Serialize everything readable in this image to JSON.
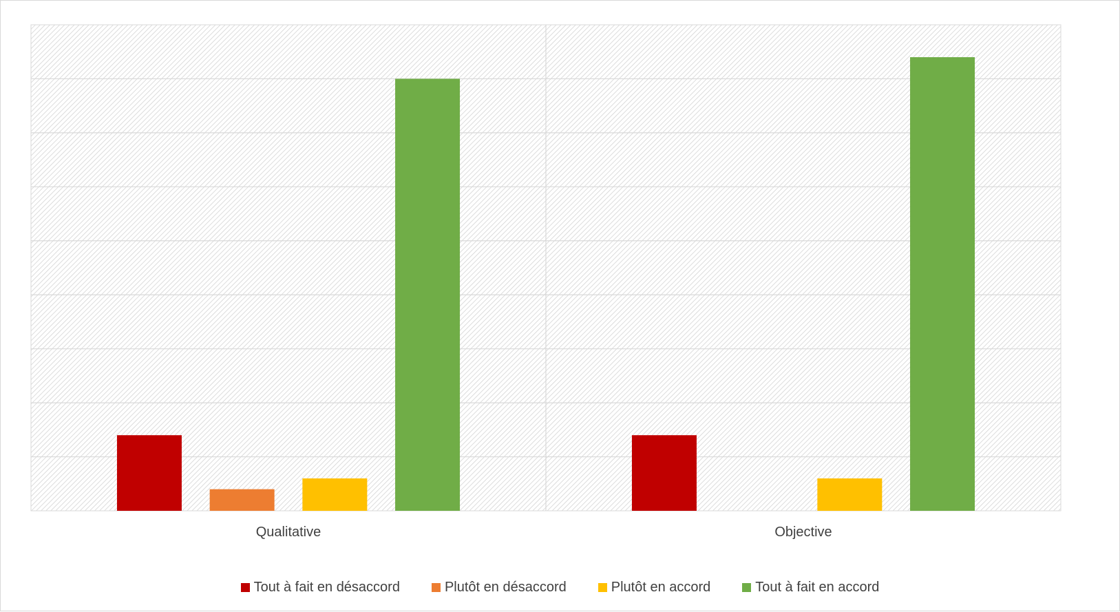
{
  "chart_data": {
    "type": "bar",
    "categories": [
      "Qualitative",
      "Objective"
    ],
    "series": [
      {
        "name": "Tout à fait en désaccord",
        "color": "#c00000",
        "values": [
          14,
          14
        ]
      },
      {
        "name": "Plutôt en désaccord",
        "color": "#ed7d31",
        "values": [
          4,
          0
        ]
      },
      {
        "name": "Plutôt en accord",
        "color": "#ffc000",
        "values": [
          6,
          6
        ]
      },
      {
        "name": "Tout à fait en accord",
        "color": "#70ad47",
        "values": [
          80,
          84
        ]
      }
    ],
    "ylim": [
      0,
      90
    ],
    "y_gridline_step": 10,
    "y_tick_labels_shown": false,
    "grid": true,
    "plot_background": "diagonal-hatch",
    "legend_position": "bottom"
  }
}
